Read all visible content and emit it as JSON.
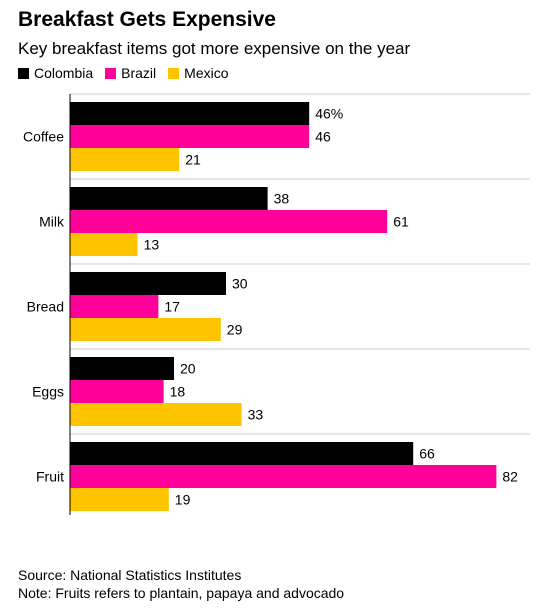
{
  "chart_data": {
    "type": "bar",
    "orientation": "horizontal",
    "title": "Breakfast Gets Expensive",
    "subtitle": "Key breakfast items got more expensive on the year",
    "categories": [
      "Coffee",
      "Milk",
      "Bread",
      "Eggs",
      "Fruit"
    ],
    "series": [
      {
        "name": "Colombia",
        "color": "#000000",
        "values": [
          46,
          38,
          30,
          20,
          66
        ]
      },
      {
        "name": "Brazil",
        "color": "#ff0099",
        "values": [
          46,
          61,
          17,
          18,
          82
        ]
      },
      {
        "name": "Mexico",
        "color": "#ffc400",
        "values": [
          21,
          13,
          29,
          33,
          19
        ]
      }
    ],
    "first_label_suffix": "%",
    "xlim": [
      0,
      82
    ],
    "legend_position": "top-left",
    "grid": false
  },
  "footer": {
    "source": "Source: National Statistics Institutes",
    "note": "Note: Fruits refers to plantain, papaya and advocado"
  }
}
